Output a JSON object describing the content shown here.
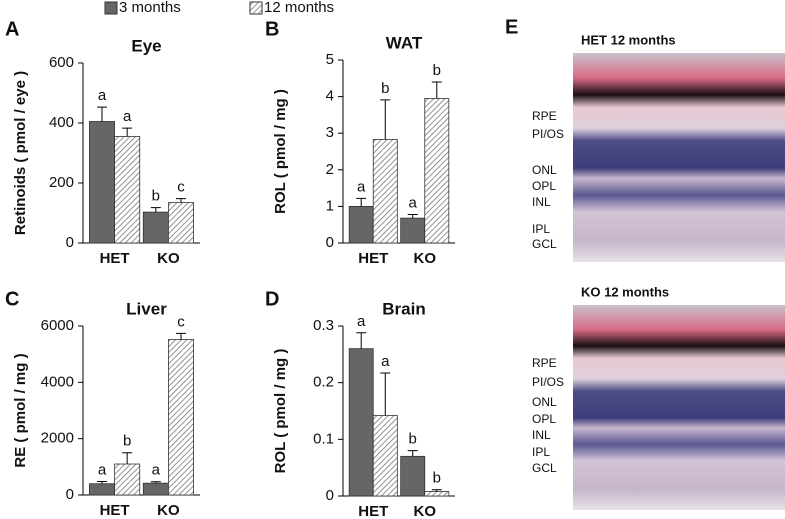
{
  "chart_data": [
    {
      "type": "bar",
      "panel": "A",
      "title": "Eye",
      "ylabel": "Retinoids ( pmol / eye )",
      "categories": [
        "HET",
        "KO"
      ],
      "series": [
        {
          "name": "3 months",
          "color": "#666666",
          "pattern": "solid",
          "values": [
            405,
            103
          ],
          "errors": [
            48,
            15
          ],
          "letters": [
            "a",
            "b"
          ]
        },
        {
          "name": "12 months",
          "color": "#888888",
          "pattern": "hatch",
          "values": [
            355,
            135
          ],
          "errors": [
            28,
            13
          ],
          "letters": [
            "a",
            "c"
          ]
        }
      ],
      "ylim": [
        0,
        600
      ],
      "yticks": [
        0,
        200,
        400,
        600
      ]
    },
    {
      "type": "bar",
      "panel": "B",
      "title": "WAT",
      "ylabel": "ROL ( pmol / mg )",
      "categories": [
        "HET",
        "KO"
      ],
      "series": [
        {
          "color": "#666666",
          "pattern": "solid",
          "values": [
            1.0,
            0.68
          ],
          "errors": [
            0.22,
            0.1
          ],
          "letters": [
            "a",
            "a"
          ]
        },
        {
          "color": "#888888",
          "pattern": "hatch",
          "values": [
            2.83,
            3.95
          ],
          "errors": [
            1.08,
            0.45
          ],
          "letters": [
            "b",
            "b"
          ]
        }
      ],
      "ylim": [
        0,
        5
      ],
      "yticks": [
        0,
        1,
        2,
        3,
        4,
        5
      ]
    },
    {
      "type": "bar",
      "panel": "C",
      "title": "Liver",
      "ylabel": "RE ( pmol / mg )",
      "categories": [
        "HET",
        "KO"
      ],
      "series": [
        {
          "color": "#666666",
          "pattern": "solid",
          "values": [
            400,
            420
          ],
          "errors": [
            80,
            50
          ],
          "letters": [
            "a",
            "a"
          ]
        },
        {
          "color": "#888888",
          "pattern": "hatch",
          "values": [
            1100,
            5520
          ],
          "errors": [
            400,
            220
          ],
          "letters": [
            "b",
            "c"
          ]
        }
      ],
      "ylim": [
        0,
        6000
      ],
      "yticks": [
        0,
        2000,
        4000,
        6000
      ]
    },
    {
      "type": "bar",
      "panel": "D",
      "title": "Brain",
      "ylabel": "ROL ( pmol / mg )",
      "categories": [
        "HET",
        "KO"
      ],
      "series": [
        {
          "color": "#666666",
          "pattern": "solid",
          "values": [
            0.26,
            0.07
          ],
          "errors": [
            0.028,
            0.01
          ],
          "letters": [
            "a",
            "b"
          ]
        },
        {
          "color": "#888888",
          "pattern": "hatch",
          "values": [
            0.142,
            0.008
          ],
          "errors": [
            0.075,
            0.003
          ],
          "letters": [
            "a",
            "b"
          ]
        }
      ],
      "ylim": [
        0,
        0.3
      ],
      "yticks": [
        0,
        0.1,
        0.2,
        0.3
      ]
    }
  ],
  "panel_e": {
    "label": "E",
    "images": [
      {
        "title": "HET 12 months",
        "layers": [
          "RPE",
          "PI/OS",
          "ONL",
          "OPL",
          "INL",
          "IPL",
          "GCL"
        ]
      },
      {
        "title": "KO 12 months",
        "layers": [
          "RPE",
          "PI/OS",
          "ONL",
          "OPL",
          "INL",
          "IPL",
          "GCL"
        ]
      }
    ]
  }
}
